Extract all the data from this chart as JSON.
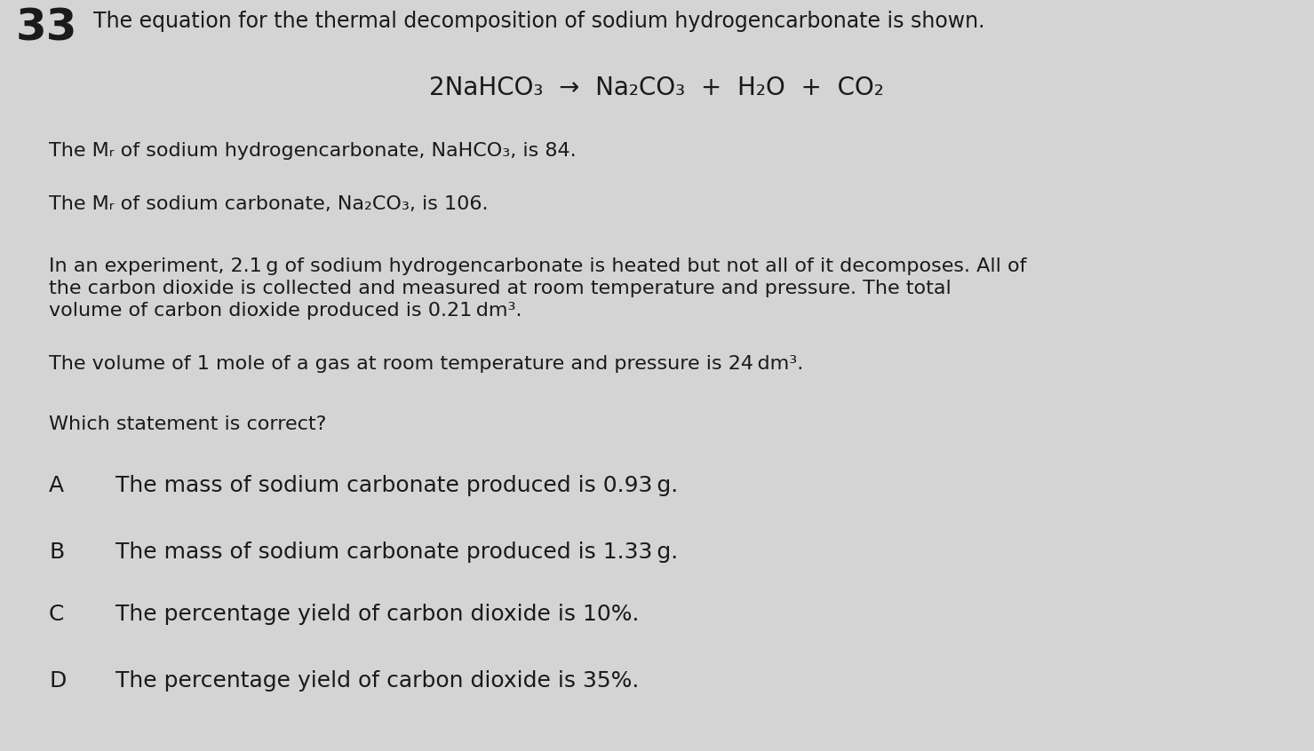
{
  "background_color": "#d4d4d4",
  "text_color": "#1a1a1a",
  "question_number": "33",
  "heading": "The equation for the thermal decomposition of sodium hydrogencarbonate is shown.",
  "equation_text": "2NaHCO₃  →  Na₂CO₃  +  H₂O  +  CO₂",
  "mr1_line": "The Mᵣ of sodium hydrogencarbonate, NaHCO₃, is 84.",
  "mr2_line": "The Mᵣ of sodium carbonate, Na₂CO₃, is 106.",
  "exp_line1": "In an experiment, 2.1 g of sodium hydrogencarbonate is heated but not all of it decomposes. All of",
  "exp_line2": "the carbon dioxide is collected and measured at room temperature and pressure. The total",
  "exp_line3": "volume of carbon dioxide produced is 0.21 dm³.",
  "volume_line": "The volume of 1 mole of a gas at room temperature and pressure is 24 dm³.",
  "question_line": "Which statement is correct?",
  "options": [
    {
      "label": "A",
      "text": "The mass of sodium carbonate produced is 0.93 g."
    },
    {
      "label": "B",
      "text": "The mass of sodium carbonate produced is 1.33 g."
    },
    {
      "label": "C",
      "text": "The percentage yield of carbon dioxide is 10%."
    },
    {
      "label": "D",
      "text": "The percentage yield of carbon dioxide is 35%."
    }
  ],
  "num_fontsize": 36,
  "heading_fontsize": 17,
  "eq_fontsize": 20,
  "body_fontsize": 16,
  "option_label_fontsize": 18,
  "option_text_fontsize": 18,
  "fig_width": 14.79,
  "fig_height": 8.46,
  "dpi": 100
}
